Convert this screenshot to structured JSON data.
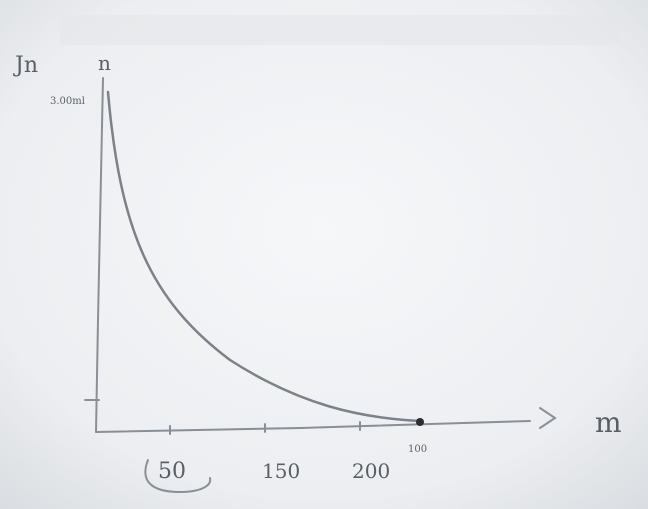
{
  "labels": {
    "y_axis_label": "Jn",
    "y_axis_symbol": "n",
    "y_top_value": "3.00ml",
    "x_axis_label": "m",
    "x_ticks": [
      "50",
      "150",
      "200"
    ],
    "x_end_value": "100"
  }
}
